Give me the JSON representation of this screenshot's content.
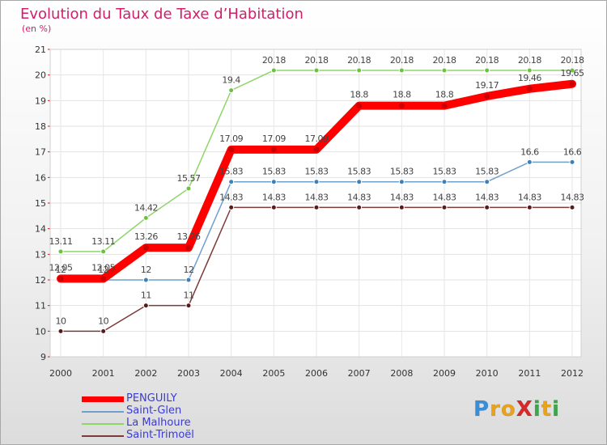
{
  "header": {
    "title": "Evolution du Taux de Taxe d’Habitation",
    "subtitle": "(en %)"
  },
  "chart_data": {
    "type": "line",
    "title": "Evolution du Taux de Taxe d’Habitation",
    "ylabel": "(en %)",
    "ylim": [
      9,
      21
    ],
    "yticks": [
      9,
      10,
      11,
      12,
      13,
      14,
      15,
      16,
      17,
      18,
      19,
      20,
      21
    ],
    "categories": [
      "2000",
      "2001",
      "2002",
      "2003",
      "2004",
      "2005",
      "2006",
      "2007",
      "2008",
      "2009",
      "2010",
      "2011",
      "2012"
    ],
    "grid": true,
    "legend": "bottom-left",
    "series": [
      {
        "name": "PENGUILY",
        "color": "#ff0000",
        "marker": "#cc0000",
        "emphasis": true,
        "values": [
          12.05,
          12.05,
          13.26,
          13.26,
          17.09,
          17.09,
          17.09,
          18.8,
          18.8,
          18.8,
          19.17,
          19.46,
          19.65
        ],
        "labels": [
          "12.05",
          "12.05",
          "13.26",
          "13.26",
          "17.09",
          "17.09",
          "17.09",
          "18.8",
          "18.8",
          "18.8",
          "19.17",
          "19.46",
          "19.65"
        ]
      },
      {
        "name": "Saint-Glen",
        "color": "#6fa0cc",
        "marker": "#3f7fb5",
        "values": [
          12,
          12,
          12,
          12,
          15.83,
          15.83,
          15.83,
          15.83,
          15.83,
          15.83,
          15.83,
          16.6,
          16.6
        ],
        "labels": [
          "12",
          "12",
          "12",
          "12",
          "15.83",
          "15.83",
          "15.83",
          "15.83",
          "15.83",
          "15.83",
          "15.83",
          "16.6",
          "16.6"
        ]
      },
      {
        "name": "La Malhoure",
        "color": "#8fd66a",
        "marker": "#6cc23f",
        "values": [
          13.11,
          13.11,
          14.42,
          15.57,
          19.4,
          20.18,
          20.18,
          20.18,
          20.18,
          20.18,
          20.18,
          20.18,
          20.18
        ],
        "labels": [
          "13.11",
          "13.11",
          "14.42",
          "15.57",
          "19.4",
          "20.18",
          "20.18",
          "20.18",
          "20.18",
          "20.18",
          "20.18",
          "20.18",
          "20.18"
        ]
      },
      {
        "name": "Saint-Trimoël",
        "color": "#7b3b3b",
        "marker": "#5a1a1a",
        "values": [
          10,
          10,
          11,
          11,
          14.83,
          14.83,
          14.83,
          14.83,
          14.83,
          14.83,
          14.83,
          14.83,
          14.83
        ],
        "labels": [
          "10",
          "10",
          "11",
          "11",
          "14.83",
          "14.83",
          "14.83",
          "14.83",
          "14.83",
          "14.83",
          "14.83",
          "14.83",
          "14.83"
        ]
      }
    ]
  },
  "legend": {
    "items": [
      {
        "label": "PENGUILY",
        "color": "#ff0000"
      },
      {
        "label": "Saint-Glen",
        "color": "#6fa0cc"
      },
      {
        "label": "La Malhoure",
        "color": "#8fd66a"
      },
      {
        "label": "Saint-Trimoël",
        "color": "#7b3b3b"
      }
    ]
  },
  "logo": {
    "text": "ProXiti",
    "letters": [
      {
        "ch": "P",
        "color": "#3a8ed8"
      },
      {
        "ch": "r",
        "color": "#e8a21c"
      },
      {
        "ch": "o",
        "color": "#e8a21c"
      },
      {
        "ch": "X",
        "color": "#d62a2a"
      },
      {
        "ch": "i",
        "color": "#3aa84a"
      },
      {
        "ch": "t",
        "color": "#e8a21c"
      },
      {
        "ch": "i",
        "color": "#3aa84a"
      }
    ]
  }
}
